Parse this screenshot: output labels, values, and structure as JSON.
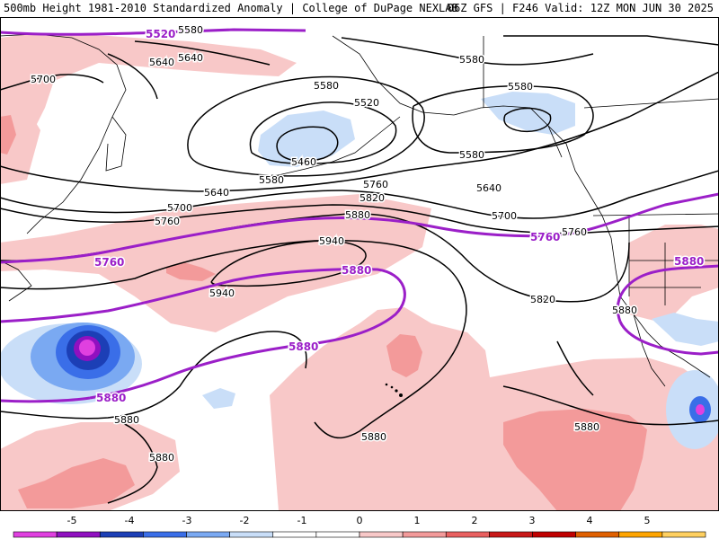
{
  "header": {
    "title": "500mb Height 1981-2010 Standardized Anomaly | College of DuPage NEXLAB",
    "run_info": "06Z GFS | F246 Valid: 12Z MON JUN 30 2025"
  },
  "contour_labels": {
    "c5520_top": "5520",
    "c5580_top": "5580",
    "c5640_top": "5640",
    "c5640_top2": "5640",
    "c5700_w": "5700",
    "c5580_nc": "5580",
    "c5520_low": "5520",
    "c5460_low": "5460",
    "c5580_s": "5580",
    "c5640_s": "5640",
    "c5700_s": "5700",
    "c5760_w": "5760",
    "c5760_c": "5760",
    "c5820_c": "5820",
    "c5880_c": "5880",
    "c5940_a": "5940",
    "c5940_b": "5940",
    "c5580_e": "5580",
    "c5580_ne": "5580",
    "c5580_ec": "5580",
    "c5640_e": "5640",
    "c5700_e": "5700",
    "c5760_e": "5760",
    "c5820_e": "5820",
    "c5880_sw1": "5880",
    "c5880_sw2": "5880",
    "c5880_s": "5880",
    "c5880_se": "5880",
    "c5880_ca": "5880"
  },
  "purple_labels": {
    "p5520": "5520",
    "p5760_w": "5760",
    "p5760_e": "5760",
    "p5880_c": "5880",
    "p5880_s": "5880",
    "p5880_sw": "5880",
    "p5880_e": "5880"
  },
  "colorbar": {
    "ticks": [
      "-5",
      "-4",
      "-3",
      "-2",
      "-1",
      "0",
      "1",
      "2",
      "3",
      "4",
      "5"
    ],
    "colors": [
      "#e040e0",
      "#9010c0",
      "#1c3fb6",
      "#3a6ee8",
      "#7aa9f2",
      "#c9def8",
      "#ffffff",
      "#ffffff",
      "#f8c8c8",
      "#f39a9a",
      "#e96060",
      "#c81818",
      "#c00000",
      "#e06000",
      "#ffa500",
      "#ffd060"
    ]
  }
}
